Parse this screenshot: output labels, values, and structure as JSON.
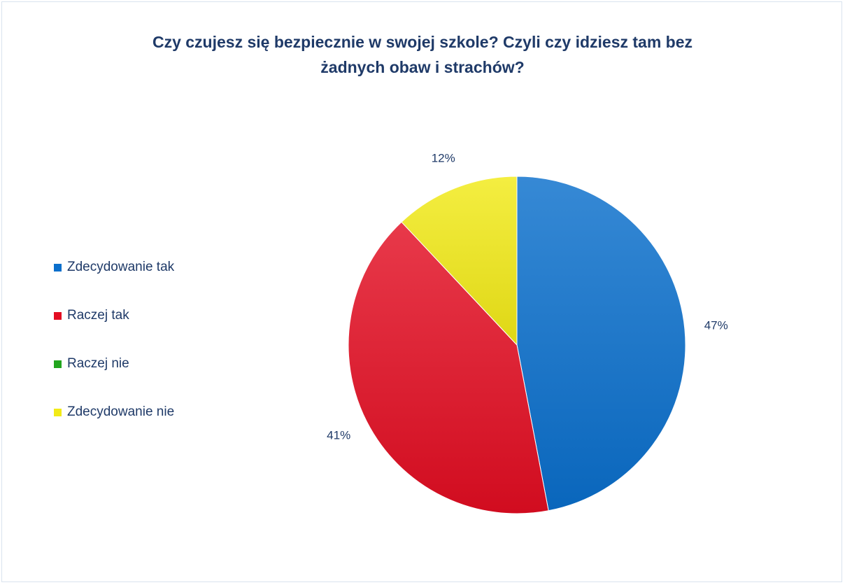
{
  "chart_data": {
    "type": "pie",
    "title_lines": [
      "Czy czujesz się bezpiecznie w swojej szkole? Czyli czy idziesz tam bez",
      "żadnych obaw i strachów?"
    ],
    "legend_position": "left",
    "slices": [
      {
        "label": "Zdecydowanie tak",
        "value": 47,
        "value_label": "47%",
        "color": "#0a6fcc"
      },
      {
        "label": "Raczej tak",
        "value": 41,
        "value_label": "41%",
        "color": "#e30d22"
      },
      {
        "label": "Raczej nie",
        "value": 0,
        "value_label": "",
        "color": "#22a51e"
      },
      {
        "label": "Zdecydowanie nie",
        "value": 12,
        "value_label": "12%",
        "color": "#f2ea17"
      }
    ]
  }
}
